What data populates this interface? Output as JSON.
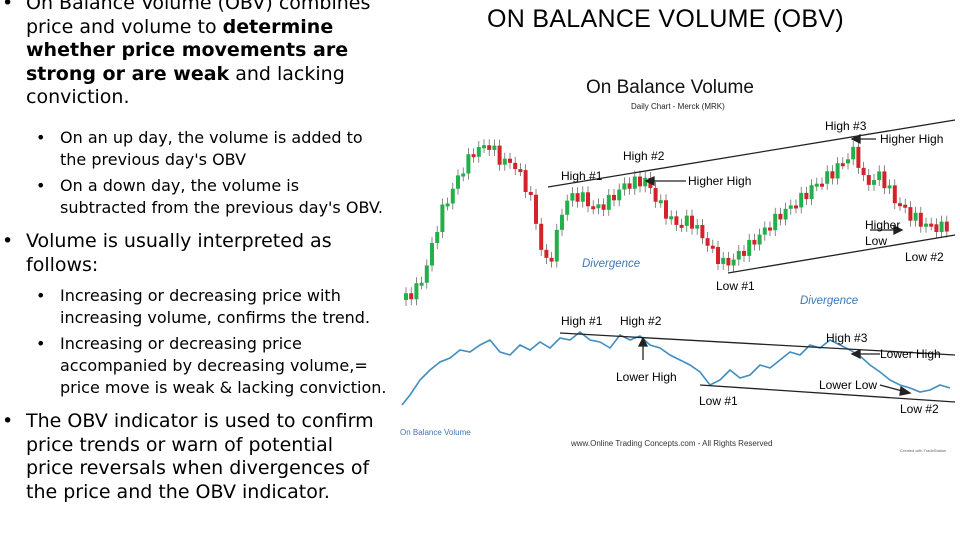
{
  "slide": {
    "title": "ON BALANCE VOLUME (OBV)",
    "bullets": {
      "b1": {
        "line1": "On Balance Volume (OBV) combines",
        "line2_pre": "price and volume to ",
        "line2_bold": "determine",
        "line3_bold": "whether price movements are",
        "line4_bold": "strong or are weak",
        "line4_post": " and lacking",
        "line5": "conviction."
      },
      "b1a": {
        "line1": "On an up day, the volume is added to",
        "line2": "the previous day's OBV"
      },
      "b1b": {
        "line1": "On a down day, the volume is",
        "line2": "subtracted from the previous day's OBV."
      },
      "b2": {
        "line1": "Volume is usually interpreted as",
        "line2": "follows:"
      },
      "b2a": {
        "line1": "Increasing or decreasing price with",
        "line2": "increasing volume, confirms the trend."
      },
      "b2b": {
        "line1": "Increasing or decreasing price",
        "line2": "accompanied by decreasing volume,=",
        "line3": "price move is weak & lacking conviction."
      },
      "b3": {
        "line1": "The OBV indicator is used to confirm",
        "line2": "price trends or warn of potential",
        "line3": "price reversals when divergences of",
        "line4": "the price and the OBV indicator."
      },
      "dot": "•"
    }
  },
  "figure": {
    "title": "On Balance Volume",
    "subtitle": "Daily Chart - Merck (MRK)",
    "labels": {
      "high1": "High #1",
      "high2": "High #2",
      "high3": "High #3",
      "higher_high_top": "Higher High",
      "higher_high_mid": "Higher High",
      "higher": "Higher",
      "low_word": "Low",
      "low1": "Low #1",
      "low2": "Low #2",
      "divergence1": "Divergence",
      "divergence2": "Divergence",
      "obv_high1": "High #1",
      "obv_high2": "High #2",
      "obv_high3": "High #3",
      "lower_high_left": "Lower High",
      "lower_high_right": "Lower High",
      "lower_low": "Lower Low",
      "obv_low1": "Low #1",
      "obv_low2": "Low #2",
      "obv_label": "On Balance Volume",
      "copyright": "www.Online Trading Concepts.com - All Rights Reserved",
      "watermark": "Created with TradeStation"
    },
    "colors": {
      "up": "#22b04b",
      "down": "#d2232a",
      "obv": "#3e8ec2",
      "label_blue": "#3b78b8"
    }
  }
}
